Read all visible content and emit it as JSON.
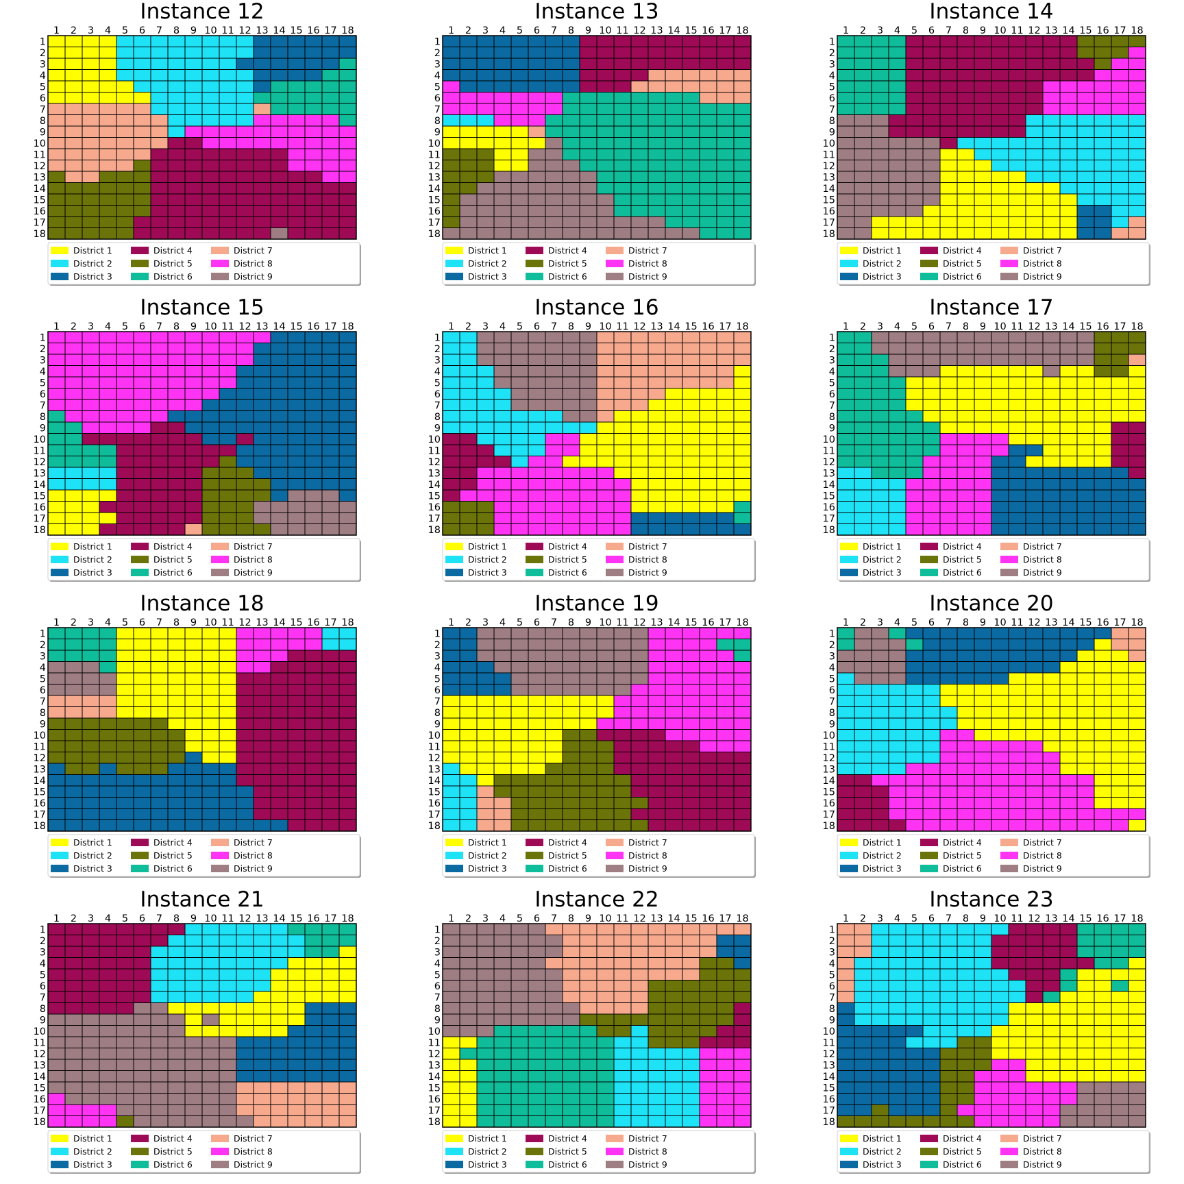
{
  "legend": [
    "District 1",
    "District 2",
    "District 3",
    "District 4",
    "District 5",
    "District 6",
    "District 7",
    "District 8",
    "District 9"
  ],
  "palette": {
    "1": "#ffff00",
    "2": "#1ee3f7",
    "3": "#0a6aa1",
    "4": "#9e0a55",
    "5": "#6b7409",
    "6": "#10bd9a",
    "7": "#f7a98e",
    "8": "#ff33f4",
    "9": "#9e7d83"
  },
  "tick_labels": [
    "1",
    "2",
    "3",
    "4",
    "5",
    "6",
    "7",
    "8",
    "9",
    "10",
    "11",
    "12",
    "13",
    "14",
    "15",
    "16",
    "17",
    "18"
  ],
  "chart_data": [
    {
      "type": "heatmap",
      "title": "Instance 12",
      "grid": [
        "111122222222333333",
        "111122222222333333",
        "111122222223333336",
        "111122222222333366",
        "111112222222366666",
        "111111222222666666",
        "777777222222766666",
        "777777722222888886",
        "777777728888888888",
        "777777744888888888",
        "777777444444448888",
        "777775444444448888",
        "577555444444444488",
        "555555444444444444",
        "555555444444444444",
        "555555444444444444",
        "555554444444444444",
        "555554444444494444"
      ]
    },
    {
      "type": "heatmap",
      "title": "Instance 13",
      "grid": [
        "333333334444444444",
        "333333334444444444",
        "333333334444444444",
        "333333334444777777",
        "833333334447777777",
        "888888866666666777",
        "888888866666666666",
        "222888666666666666",
        "111117666666666666",
        "111111966666666666",
        "555119966666666666",
        "555119996666666666",
        "555999999666666666",
        "559999999666666666",
        "599999999966666666",
        "599999999966666666",
        "599999999999966666",
        "999999999999999666"
      ]
    },
    {
      "type": "heatmap",
      "title": "Instance 14",
      "grid": [
        "666644444444445555",
        "666644444444445558",
        "666644444444444588",
        "666644444444444888",
        "666644444444888888",
        "666644444444888888",
        "666644444444888888",
        "999444444442222222",
        "999444444442222222",
        "999999422222222222",
        "999999112222222222",
        "999999111222222222",
        "999999111112222222",
        "999999111111122222",
        "999999111111112222",
        "999991111111113322",
        "991111111111113327",
        "991111111111113377"
      ]
    },
    {
      "type": "heatmap",
      "title": "Instance 15",
      "grid": [
        "888888888888833333",
        "888888888888333333",
        "888888888888333333",
        "888888888883333333",
        "888888888883333333",
        "888888888833333333",
        "888888888333333333",
        "688888833333333333",
        "668888443333333333",
        "664444444334333333",
        "666644444443333333",
        "666644444453333333",
        "222244444555333333",
        "222244444555533333",
        "111144444555539993",
        "111444444555999999",
        "111144444555999999",
        "111444447555599999"
      ]
    },
    {
      "type": "heatmap",
      "title": "Instance 16",
      "grid": [
        "229999999777777777",
        "229999999777777777",
        "229999999777777777",
        "222999999777777771",
        "222999999777777771",
        "222299999777711111",
        "222299999777111111",
        "222222299711111111",
        "222222222111111111",
        "442222881111111111",
        "444222881111111111",
        "444428811111111111",
        "448888888811111111",
        "448888888881111111",
        "488888888881111111",
        "555888888881111116",
        "555888888883333336",
        "555888888883333333"
      ]
    },
    {
      "type": "heatmap",
      "title": "Instance 17",
      "grid": [
        "669999999999999555",
        "669999999999999555",
        "666999999999999557",
        "666999111111911551",
        "666611111111111111",
        "666611111111111111",
        "666611111111111111",
        "666661111111111111",
        "666666111111111144",
        "666666888811111144",
        "666666888833111144",
        "666668888331111144",
        "226668888333333334",
        "222288888333333333",
        "222288888333333333",
        "222288888333333333",
        "222288888333333333",
        "222288888333333333"
      ]
    },
    {
      "type": "heatmap",
      "title": "Instance 18",
      "grid": [
        "666611111118888822",
        "666611111118888822",
        "666611111118884444",
        "999611111118844444",
        "999911111114444444",
        "999911111114444444",
        "777711111114444444",
        "777711111114444444",
        "555555511114444444",
        "555555551114444444",
        "555555551114444444",
        "555555553114444444",
        "355355533334444444",
        "333333333334444444",
        "333333333333444444",
        "333333333333444444",
        "333333333333444444",
        "333333333333334444"
      ]
    },
    {
      "type": "heatmap",
      "title": "Instance 19",
      "grid": [
        "339999999999888888",
        "339999999999888866",
        "339999999999888886",
        "333999999999888888",
        "333399999999888888",
        "333399999998888888",
        "111111111188888888",
        "111111111188888888",
        "111111111888888888",
        "111111155444488888",
        "111111155544444888",
        "111111155544444444",
        "211111555544444444",
        "221555555554444444",
        "227555555554444444",
        "227755555555444444",
        "227755555554444444",
        "227755555555444444"
      ]
    },
    {
      "type": "heatmap",
      "title": "Instance 20",
      "grid": [
        "699633333333333377",
        "699963333333333177",
        "999933333333331117",
        "999933333333311111",
        "299933333311111111",
        "222222111111111111",
        "222222111111111111",
        "222222211111111111",
        "222222211111111111",
        "222222881111111111",
        "222222888888111111",
        "222222888888811111",
        "222288888888811111",
        "448888888888888111",
        "444888888888888111",
        "444888888888888111",
        "444888888888888888",
        "444488888888888881"
      ]
    },
    {
      "type": "heatmap",
      "title": "Instance 21",
      "grid": [
        "444444442222226666",
        "444444422222222666",
        "444444222222222661",
        "444444222222221111",
        "444444222222211111",
        "444444222222211111",
        "444444222222111111",
        "444449911111111333",
        "999999991911111333",
        "999999991111113333",
        "999999999993333333",
        "999999999993333333",
        "999999999993333333",
        "999999999993333333",
        "999999999997777777",
        "899999999997777777",
        "888899999997777777",
        "888859999999777777"
      ]
    },
    {
      "type": "heatmap",
      "title": "Instance 22",
      "grid": [
        "999999777777777777",
        "999999977777777733",
        "999999977777777733",
        "999999777777777553",
        "999999977777777555",
        "999999977777555555",
        "999999977777555555",
        "999999997777555554",
        "999999995555555554",
        "999666666552555544",
        "116666666622555444",
        "166666666622222888",
        "116666666622222888",
        "116666666622222888",
        "116666666622222888",
        "116666666622222888",
        "116666666622222888",
        "116666666622222888"
      ]
    },
    {
      "type": "heatmap",
      "title": "Instance 23",
      "grid": [
        "772222222244446666",
        "772222222444446666",
        "772222222444446666",
        "722222222444444661",
        "722222222244461111",
        "722222222224461161",
        "722222222224611111",
        "322222222211111111",
        "322222222211111111",
        "333332222111111111",
        "333322255111111111",
        "333333555111111111",
        "333333555881111111",
        "333333558881111111",
        "333333558888889999",
        "333333558888889999",
        "335333588888899999",
        "555555558888899999"
      ]
    }
  ]
}
